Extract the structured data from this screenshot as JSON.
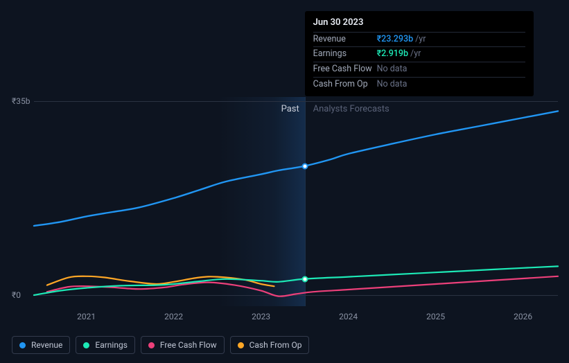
{
  "chart": {
    "type": "line",
    "background_color": "#0d1420",
    "grid_color": "#2a3242",
    "text_color": "#8a92a3",
    "x_axis": {
      "ticks": [
        2021,
        2022,
        2023,
        2024,
        2025,
        2026
      ],
      "min": 2020.4,
      "max": 2026.4
    },
    "y_axis": {
      "ticks": [
        {
          "value": 0,
          "label": "₹0"
        },
        {
          "value": 35,
          "label": "₹35b"
        }
      ],
      "min": -2,
      "max": 37
    },
    "past_label": "Past",
    "forecast_label": "Analysts Forecasts",
    "divider_x": 2023.5,
    "past_region_start": 2022.5,
    "series": [
      {
        "key": "revenue",
        "label": "Revenue",
        "color": "#2196f3",
        "stroke_width": 2.4,
        "points": [
          [
            2020.4,
            12.5
          ],
          [
            2020.7,
            13.2
          ],
          [
            2021.0,
            14.2
          ],
          [
            2021.3,
            15.0
          ],
          [
            2021.6,
            15.8
          ],
          [
            2022.0,
            17.5
          ],
          [
            2022.3,
            19.0
          ],
          [
            2022.6,
            20.5
          ],
          [
            2023.0,
            21.8
          ],
          [
            2023.2,
            22.5
          ],
          [
            2023.5,
            23.293
          ],
          [
            2023.8,
            24.5
          ],
          [
            2024.0,
            25.5
          ],
          [
            2024.5,
            27.3
          ],
          [
            2025.0,
            29.0
          ],
          [
            2025.5,
            30.5
          ],
          [
            2026.0,
            32.0
          ],
          [
            2026.4,
            33.2
          ]
        ],
        "marker_at": [
          2023.5,
          23.293
        ]
      },
      {
        "key": "earnings",
        "label": "Earnings",
        "color": "#1de9b6",
        "stroke_width": 2.2,
        "points": [
          [
            2020.4,
            0.0
          ],
          [
            2020.7,
            0.8
          ],
          [
            2021.0,
            1.3
          ],
          [
            2021.4,
            1.7
          ],
          [
            2021.8,
            1.8
          ],
          [
            2022.0,
            2.0
          ],
          [
            2022.3,
            2.5
          ],
          [
            2022.6,
            2.9
          ],
          [
            2023.0,
            2.6
          ],
          [
            2023.2,
            2.4
          ],
          [
            2023.5,
            2.919
          ],
          [
            2024.0,
            3.3
          ],
          [
            2024.5,
            3.7
          ],
          [
            2025.0,
            4.1
          ],
          [
            2025.5,
            4.5
          ],
          [
            2026.0,
            4.9
          ],
          [
            2026.4,
            5.2
          ]
        ],
        "marker_at": [
          2023.5,
          2.919
        ]
      },
      {
        "key": "fcf",
        "label": "Free Cash Flow",
        "color": "#ec407a",
        "stroke_width": 2.2,
        "points": [
          [
            2020.55,
            0.6
          ],
          [
            2020.8,
            1.5
          ],
          [
            2021.0,
            1.6
          ],
          [
            2021.3,
            1.4
          ],
          [
            2021.6,
            1.1
          ],
          [
            2021.9,
            1.4
          ],
          [
            2022.1,
            1.9
          ],
          [
            2022.4,
            2.3
          ],
          [
            2022.7,
            1.8
          ],
          [
            2023.0,
            0.8
          ],
          [
            2023.2,
            -0.2
          ],
          [
            2023.4,
            0.2
          ],
          [
            2023.6,
            0.6
          ],
          [
            2024.0,
            1.0
          ],
          [
            2024.5,
            1.5
          ],
          [
            2025.0,
            2.0
          ],
          [
            2025.5,
            2.5
          ],
          [
            2026.0,
            3.0
          ],
          [
            2026.4,
            3.4
          ]
        ]
      },
      {
        "key": "cfo",
        "label": "Cash From Op",
        "color": "#ffa726",
        "stroke_width": 2.2,
        "points": [
          [
            2020.55,
            1.8
          ],
          [
            2020.8,
            3.2
          ],
          [
            2021.0,
            3.4
          ],
          [
            2021.2,
            3.2
          ],
          [
            2021.5,
            2.5
          ],
          [
            2021.8,
            2.0
          ],
          [
            2022.0,
            2.4
          ],
          [
            2022.3,
            3.2
          ],
          [
            2022.5,
            3.3
          ],
          [
            2022.8,
            2.8
          ],
          [
            2023.0,
            2.0
          ],
          [
            2023.15,
            1.6
          ]
        ]
      }
    ],
    "tooltip": {
      "title": "Jun 30 2023",
      "rows": [
        {
          "label": "Revenue",
          "value": "₹23.293b",
          "unit": "/yr",
          "color": "#2196f3"
        },
        {
          "label": "Earnings",
          "value": "₹2.919b",
          "unit": "/yr",
          "color": "#1de9b6"
        },
        {
          "label": "Free Cash Flow",
          "value": null,
          "nodata": "No data"
        },
        {
          "label": "Cash From Op",
          "value": null,
          "nodata": "No data"
        }
      ]
    },
    "legend": [
      {
        "label": "Revenue",
        "color": "#2196f3"
      },
      {
        "label": "Earnings",
        "color": "#1de9b6"
      },
      {
        "label": "Free Cash Flow",
        "color": "#ec407a"
      },
      {
        "label": "Cash From Op",
        "color": "#ffa726"
      }
    ]
  }
}
